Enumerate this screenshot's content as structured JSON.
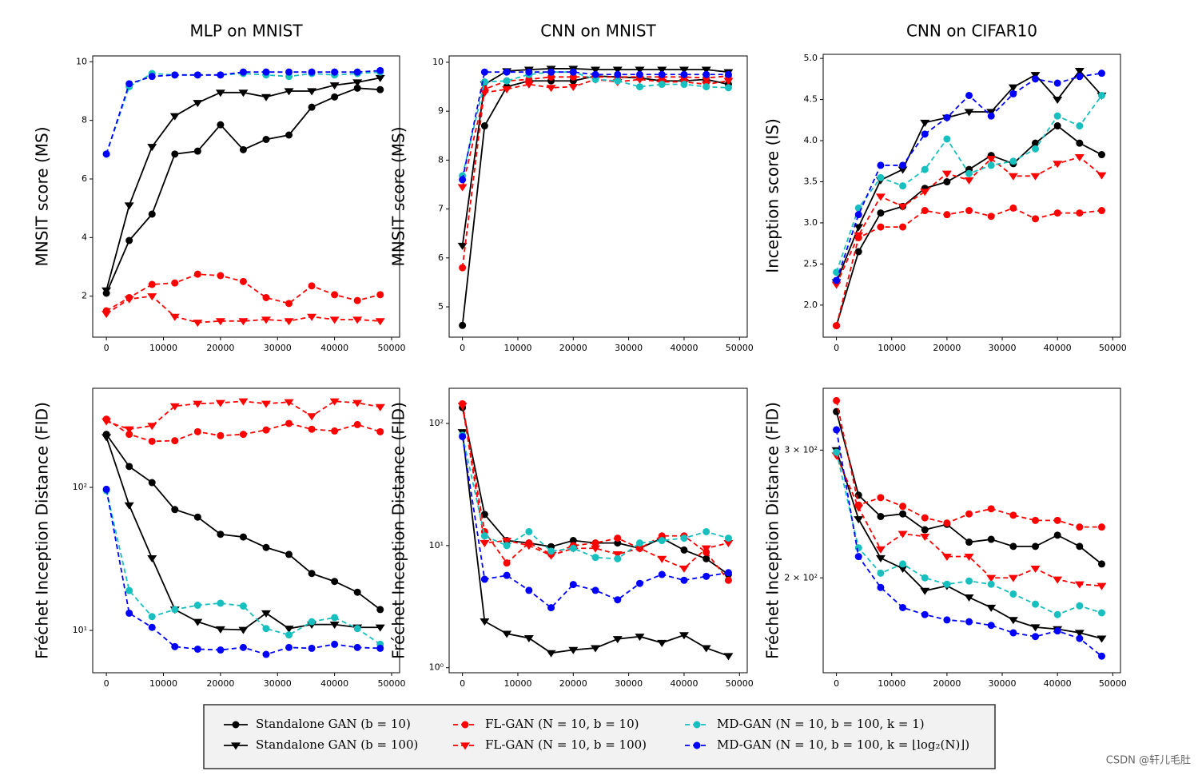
{
  "chart_data": [
    {
      "type": "line",
      "title": "MLP on MNIST",
      "ylabel": "MNSIT score (MS)",
      "log_scale": false,
      "x": [
        0,
        4000,
        8000,
        12000,
        16000,
        20000,
        24000,
        28000,
        32000,
        36000,
        40000,
        44000,
        48000
      ],
      "xlim": [
        -2400,
        51400
      ],
      "xticks": [
        0,
        10000,
        20000,
        30000,
        40000,
        50000
      ],
      "ylim": [
        0.6,
        10.2
      ],
      "yticks": [
        2,
        4,
        6,
        8,
        10
      ],
      "series": [
        {
          "name": "Standalone GAN (b = 10)",
          "color": "#000000",
          "marker": "circle",
          "dashed": false,
          "values": [
            2.1,
            3.9,
            4.8,
            6.85,
            6.95,
            7.85,
            7.0,
            7.35,
            7.5,
            8.45,
            8.8,
            9.1,
            9.05
          ]
        },
        {
          "name": "Standalone GAN (b = 100)",
          "color": "#000000",
          "marker": "triangle",
          "dashed": false,
          "values": [
            2.2,
            5.1,
            7.1,
            8.15,
            8.6,
            8.95,
            8.95,
            8.8,
            9.0,
            9.0,
            9.2,
            9.3,
            9.45
          ]
        },
        {
          "name": "FL-GAN (N = 10, b = 10)",
          "color": "#ff0000",
          "marker": "circle",
          "dashed": true,
          "values": [
            1.5,
            1.95,
            2.4,
            2.45,
            2.75,
            2.7,
            2.5,
            1.95,
            1.75,
            2.35,
            2.05,
            1.85,
            2.05
          ]
        },
        {
          "name": "FL-GAN (N = 10, b = 100)",
          "color": "#ff0000",
          "marker": "triangle",
          "dashed": true,
          "values": [
            1.4,
            1.9,
            2.0,
            1.3,
            1.1,
            1.15,
            1.15,
            1.2,
            1.15,
            1.3,
            1.2,
            1.2,
            1.15
          ]
        },
        {
          "name": "MD-GAN (N = 10, b = 100, k = 1)",
          "color": "#17bfbf",
          "marker": "circle",
          "dashed": true,
          "values": [
            6.85,
            9.15,
            9.6,
            9.55,
            9.55,
            9.55,
            9.6,
            9.55,
            9.5,
            9.6,
            9.55,
            9.6,
            9.65
          ]
        },
        {
          "name": "MD-GAN (N = 10, b = 100, k = ⌊log₂(N)⌋)",
          "color": "#0000ff",
          "marker": "circle",
          "dashed": true,
          "values": [
            6.85,
            9.25,
            9.5,
            9.55,
            9.55,
            9.55,
            9.65,
            9.65,
            9.65,
            9.65,
            9.65,
            9.65,
            9.7
          ]
        }
      ]
    },
    {
      "type": "line",
      "title": "CNN on MNIST",
      "ylabel": "MNSIT score (MS)",
      "log_scale": false,
      "x": [
        0,
        4000,
        8000,
        12000,
        16000,
        20000,
        24000,
        28000,
        32000,
        36000,
        40000,
        44000,
        48000
      ],
      "xlim": [
        -2400,
        51400
      ],
      "xticks": [
        0,
        10000,
        20000,
        30000,
        40000,
        50000
      ],
      "ylim": [
        4.38,
        10.13
      ],
      "yticks": [
        5,
        6,
        7,
        8,
        9,
        10
      ],
      "series": [
        {
          "color": "#000000",
          "marker": "circle",
          "dashed": false,
          "values": [
            4.62,
            8.7,
            9.5,
            9.62,
            9.62,
            9.62,
            9.72,
            9.7,
            9.68,
            9.62,
            9.62,
            9.65,
            9.55
          ]
        },
        {
          "color": "#000000",
          "marker": "triangle",
          "dashed": false,
          "values": [
            6.25,
            9.55,
            9.82,
            9.85,
            9.87,
            9.87,
            9.85,
            9.85,
            9.85,
            9.85,
            9.85,
            9.85,
            9.8
          ]
        },
        {
          "color": "#ff0000",
          "marker": "circle",
          "dashed": true,
          "values": [
            5.8,
            9.45,
            9.62,
            9.65,
            9.7,
            9.7,
            9.7,
            9.7,
            9.7,
            9.7,
            9.7,
            9.68,
            9.72
          ]
        },
        {
          "color": "#ff0000",
          "marker": "triangle",
          "dashed": true,
          "values": [
            7.45,
            9.38,
            9.45,
            9.55,
            9.48,
            9.5,
            9.65,
            9.6,
            9.65,
            9.6,
            9.6,
            9.55,
            9.62
          ]
        },
        {
          "color": "#17bfbf",
          "marker": "circle",
          "dashed": true,
          "values": [
            7.68,
            9.6,
            9.62,
            9.75,
            9.8,
            9.8,
            9.65,
            9.62,
            9.5,
            9.55,
            9.55,
            9.5,
            9.48
          ]
        },
        {
          "color": "#0000ff",
          "marker": "circle",
          "dashed": true,
          "values": [
            7.6,
            9.8,
            9.8,
            9.8,
            9.8,
            9.8,
            9.75,
            9.75,
            9.75,
            9.75,
            9.75,
            9.75,
            9.75
          ]
        }
      ]
    },
    {
      "type": "line",
      "title": "CNN on CIFAR10",
      "ylabel": "Inception score (IS)",
      "log_scale": false,
      "x": [
        0,
        4000,
        8000,
        12000,
        16000,
        20000,
        24000,
        28000,
        32000,
        36000,
        40000,
        44000,
        48000
      ],
      "xlim": [
        -2400,
        51400
      ],
      "xticks": [
        0,
        10000,
        20000,
        30000,
        40000,
        50000
      ],
      "ylim": [
        1.61,
        5.05
      ],
      "yticks": [
        {
          "value": 2,
          "label": "2.0"
        },
        2.5,
        {
          "value": 3,
          "label": "3.0"
        },
        3.5,
        {
          "value": 4,
          "label": "4.0"
        },
        4.5,
        {
          "value": 5,
          "label": "5.0"
        }
      ],
      "series": [
        {
          "color": "#000000",
          "marker": "circle",
          "dashed": false,
          "values": [
            1.75,
            2.65,
            3.12,
            3.2,
            3.42,
            3.5,
            3.65,
            3.82,
            3.72,
            3.97,
            4.18,
            3.97,
            3.83
          ]
        },
        {
          "color": "#000000",
          "marker": "triangle",
          "dashed": false,
          "values": [
            2.28,
            2.95,
            3.52,
            3.65,
            4.22,
            4.28,
            4.35,
            4.35,
            4.65,
            4.8,
            4.5,
            4.85,
            4.55
          ]
        },
        {
          "color": "#ff0000",
          "marker": "circle",
          "dashed": true,
          "values": [
            1.75,
            2.82,
            2.95,
            2.95,
            3.15,
            3.1,
            3.15,
            3.08,
            3.18,
            3.05,
            3.12,
            3.12,
            3.15
          ]
        },
        {
          "color": "#ff0000",
          "marker": "triangle",
          "dashed": true,
          "values": [
            2.25,
            2.85,
            3.32,
            3.2,
            3.38,
            3.6,
            3.52,
            3.78,
            3.57,
            3.57,
            3.72,
            3.8,
            3.58
          ]
        },
        {
          "color": "#17bfbf",
          "marker": "circle",
          "dashed": true,
          "values": [
            2.4,
            3.18,
            3.55,
            3.45,
            3.65,
            4.02,
            3.6,
            3.7,
            3.75,
            3.9,
            4.3,
            4.18,
            4.55
          ]
        },
        {
          "color": "#0000ff",
          "marker": "circle",
          "dashed": true,
          "values": [
            2.3,
            3.1,
            3.7,
            3.7,
            4.08,
            4.28,
            4.55,
            4.3,
            4.57,
            4.75,
            4.7,
            4.78,
            4.82
          ]
        }
      ]
    },
    {
      "type": "line",
      "ylabel": "Fréchet Inception Distance (FID)",
      "log_scale": true,
      "x": [
        0,
        4000,
        8000,
        12000,
        16000,
        20000,
        24000,
        28000,
        32000,
        36000,
        40000,
        44000,
        48000
      ],
      "xlim": [
        -2400,
        51400
      ],
      "xticks": [
        0,
        10000,
        20000,
        30000,
        40000,
        50000
      ],
      "ylim": [
        5.06,
        493
      ],
      "yticks": [
        {
          "value": 10,
          "label": "10¹"
        },
        {
          "value": 100,
          "label": "10²"
        }
      ],
      "series": [
        {
          "color": "#000000",
          "marker": "circle",
          "dashed": false,
          "values": [
            235,
            140,
            108,
            70,
            62,
            47,
            45,
            38,
            34,
            25,
            22,
            18.5,
            14
          ]
        },
        {
          "color": "#000000",
          "marker": "triangle",
          "dashed": false,
          "values": [
            225,
            75,
            32,
            14,
            11.5,
            10.2,
            10.1,
            13.2,
            10.3,
            11,
            11,
            10.5,
            10.5
          ]
        },
        {
          "color": "#ff0000",
          "marker": "circle",
          "dashed": true,
          "values": [
            300,
            235,
            210,
            212,
            245,
            230,
            235,
            252,
            280,
            255,
            248,
            275,
            245
          ]
        },
        {
          "color": "#ff0000",
          "marker": "triangle",
          "dashed": true,
          "values": [
            290,
            255,
            270,
            370,
            385,
            390,
            400,
            385,
            395,
            315,
            400,
            390,
            365
          ]
        },
        {
          "color": "#17bfbf",
          "marker": "circle",
          "dashed": true,
          "values": [
            95,
            19,
            12.5,
            14,
            15,
            15.5,
            14.8,
            10.3,
            9.3,
            11.5,
            12.3,
            10.3,
            8.0
          ]
        },
        {
          "color": "#0000ff",
          "marker": "circle",
          "dashed": true,
          "values": [
            97,
            13.2,
            10.5,
            7.7,
            7.4,
            7.3,
            7.6,
            6.8,
            7.6,
            7.5,
            8.0,
            7.6,
            7.5
          ]
        }
      ]
    },
    {
      "type": "line",
      "ylabel": "Fréchet Inception Distance (FID)",
      "log_scale": true,
      "x": [
        0,
        4000,
        8000,
        12000,
        16000,
        20000,
        24000,
        28000,
        32000,
        36000,
        40000,
        44000,
        48000
      ],
      "xlim": [
        -2400,
        51400
      ],
      "xticks": [
        0,
        10000,
        20000,
        30000,
        40000,
        50000
      ],
      "ylim": [
        0.91,
        194
      ],
      "yticks": [
        {
          "value": 1,
          "label": "10⁰"
        },
        {
          "value": 10,
          "label": "10¹"
        },
        {
          "value": 100,
          "label": "10²"
        }
      ],
      "series": [
        {
          "color": "#000000",
          "marker": "circle",
          "dashed": false,
          "values": [
            135,
            18,
            11,
            10.5,
            9.8,
            11,
            10.5,
            10.5,
            9.5,
            11.5,
            9.2,
            7.8,
            5.8
          ]
        },
        {
          "color": "#000000",
          "marker": "triangle",
          "dashed": false,
          "values": [
            85,
            2.4,
            1.9,
            1.75,
            1.32,
            1.4,
            1.45,
            1.72,
            1.8,
            1.6,
            1.85,
            1.45,
            1.25
          ]
        },
        {
          "color": "#ff0000",
          "marker": "circle",
          "dashed": true,
          "values": [
            145,
            13,
            7.2,
            10.5,
            8.5,
            10,
            10.5,
            11.5,
            9.5,
            12,
            12,
            8.8,
            5.2
          ]
        },
        {
          "color": "#ff0000",
          "marker": "triangle",
          "dashed": true,
          "values": [
            140,
            10.5,
            11,
            10,
            8.3,
            9.5,
            9.5,
            8.5,
            9.5,
            7.8,
            6.5,
            9.5,
            10.5
          ]
        },
        {
          "color": "#17bfbf",
          "marker": "circle",
          "dashed": true,
          "values": [
            80,
            12,
            10,
            13,
            9,
            9.5,
            8,
            7.8,
            10.5,
            11,
            11.5,
            13,
            11.5
          ]
        },
        {
          "color": "#0000ff",
          "marker": "circle",
          "dashed": true,
          "values": [
            78,
            5.3,
            5.7,
            4.3,
            3.1,
            4.8,
            4.3,
            3.6,
            4.9,
            5.8,
            5.2,
            5.6,
            6.0
          ]
        }
      ]
    },
    {
      "type": "line",
      "ylabel": "Fréchet Inception Distance (FID)",
      "log_scale": true,
      "x": [
        0,
        4000,
        8000,
        12000,
        16000,
        20000,
        24000,
        28000,
        32000,
        36000,
        40000,
        44000,
        48000
      ],
      "xlim": [
        -2400,
        51400
      ],
      "xticks": [
        0,
        10000,
        20000,
        30000,
        40000,
        50000
      ],
      "ylim": [
        148,
        365
      ],
      "yticks": [
        {
          "value": 200,
          "label": "2 × 10²"
        },
        {
          "value": 300,
          "label": "3 × 10²"
        }
      ],
      "series": [
        {
          "color": "#000000",
          "marker": "circle",
          "dashed": false,
          "values": [
            339,
            260,
            243,
            245,
            233,
            237,
            224,
            226,
            221,
            221,
            229,
            221,
            209
          ]
        },
        {
          "color": "#000000",
          "marker": "triangle",
          "dashed": false,
          "values": [
            300,
            241,
            213,
            206,
            192,
            195,
            188,
            182,
            175,
            171,
            170,
            168,
            165
          ]
        },
        {
          "color": "#ff0000",
          "marker": "circle",
          "dashed": true,
          "values": [
            351,
            252,
            258,
            251,
            242,
            238,
            245,
            249,
            244,
            240,
            240,
            235,
            235
          ]
        },
        {
          "color": "#ff0000",
          "marker": "triangle",
          "dashed": true,
          "values": [
            295,
            250,
            219,
            230,
            228,
            214,
            214,
            200,
            200,
            206,
            199,
            196,
            195
          ]
        },
        {
          "color": "#17bfbf",
          "marker": "circle",
          "dashed": true,
          "values": [
            298,
            220,
            203,
            209,
            200,
            196,
            198,
            196,
            190,
            184,
            178,
            183,
            179
          ]
        },
        {
          "color": "#0000ff",
          "marker": "circle",
          "dashed": true,
          "values": [
            320,
            214,
            194,
            182,
            178,
            175,
            174,
            172,
            168,
            166,
            169,
            165,
            156
          ]
        }
      ]
    }
  ],
  "watermark": "CSDN @轩儿毛肚"
}
